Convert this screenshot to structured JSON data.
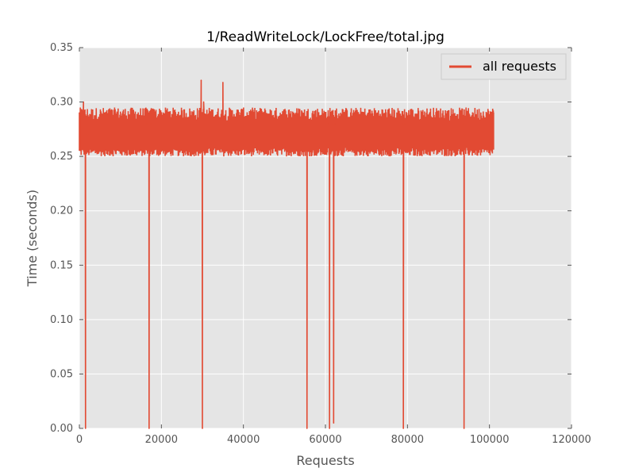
{
  "chart_data": {
    "type": "line",
    "title": "1/ReadWriteLock/LockFree/total.jpg",
    "xlabel": "Requests",
    "ylabel": "Time (seconds)",
    "xlim": [
      0,
      120000
    ],
    "ylim": [
      0.0,
      0.35
    ],
    "x_ticks": [
      "0",
      "20000",
      "40000",
      "60000",
      "80000",
      "100000",
      "120000"
    ],
    "y_ticks": [
      "0.00",
      "0.05",
      "0.10",
      "0.15",
      "0.20",
      "0.25",
      "0.30",
      "0.35"
    ],
    "grid": true,
    "legend_position": "top-right",
    "series": [
      {
        "name": "all requests",
        "color": "#e24a33",
        "x_range": [
          0,
          101000
        ],
        "band": [
          0.25,
          0.295
        ],
        "x": [
          0,
          1000,
          1500,
          2000,
          16500,
          17000,
          17500,
          29700,
          30000,
          30300,
          35000,
          55200,
          55500,
          55800,
          60800,
          61000,
          61300,
          61800,
          62000,
          62300,
          78800,
          79000,
          79300,
          93600,
          93800,
          94000,
          101000
        ],
        "values": [
          0.29,
          0.3,
          0.0,
          0.27,
          0.28,
          0.0,
          0.28,
          0.32,
          0.0,
          0.3,
          0.318,
          0.28,
          0.0,
          0.27,
          0.28,
          0.0,
          0.27,
          0.28,
          0.005,
          0.28,
          0.28,
          0.0,
          0.28,
          0.28,
          0.0,
          0.27,
          0.29
        ]
      }
    ]
  }
}
